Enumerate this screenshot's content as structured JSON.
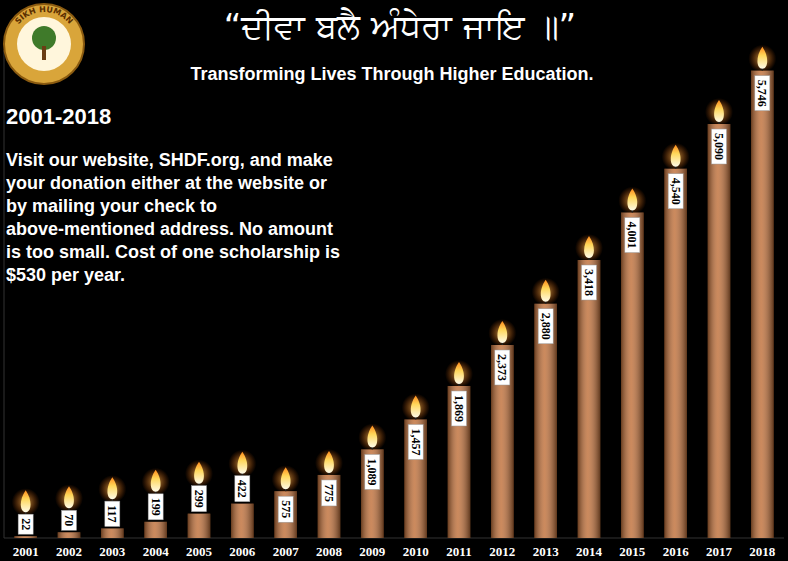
{
  "logo": {
    "text": "SIKH HUMAN"
  },
  "chart_data": {
    "type": "bar",
    "title": "“ਦੀਵਾ ਬਲੈ ਅੰਧੇਰਾ ਜਾਇ ॥”",
    "subtitle": "Transforming Lives Through Higher Education.",
    "annotations": [
      "2001-2018",
      "Visit our website, SHDF.org, and make your donation either at the website or by mailing your check to above-mentioned address. No amount is too small. Cost of one scholarship is $530 per year."
    ],
    "categories": [
      "2001",
      "2002",
      "2003",
      "2004",
      "2005",
      "2006",
      "2007",
      "2008",
      "2009",
      "2010",
      "2011",
      "2012",
      "2013",
      "2014",
      "2015",
      "2016",
      "2017",
      "2018"
    ],
    "values": [
      22,
      70,
      117,
      199,
      299,
      422,
      575,
      775,
      1089,
      1457,
      1869,
      2373,
      2880,
      3418,
      4001,
      4540,
      5090,
      5746
    ],
    "value_labels": [
      "22",
      "70",
      "117",
      "199",
      "299",
      "422",
      "575",
      "775",
      "1,089",
      "1,457",
      "1,869",
      "2,373",
      "2,880",
      "3,418",
      "4,001",
      "4,540",
      "5,090",
      "5,746"
    ],
    "color": "#c0703a",
    "ylim": [
      0,
      6000
    ],
    "grid": false,
    "data_labels": true,
    "tick_labels": "x"
  }
}
